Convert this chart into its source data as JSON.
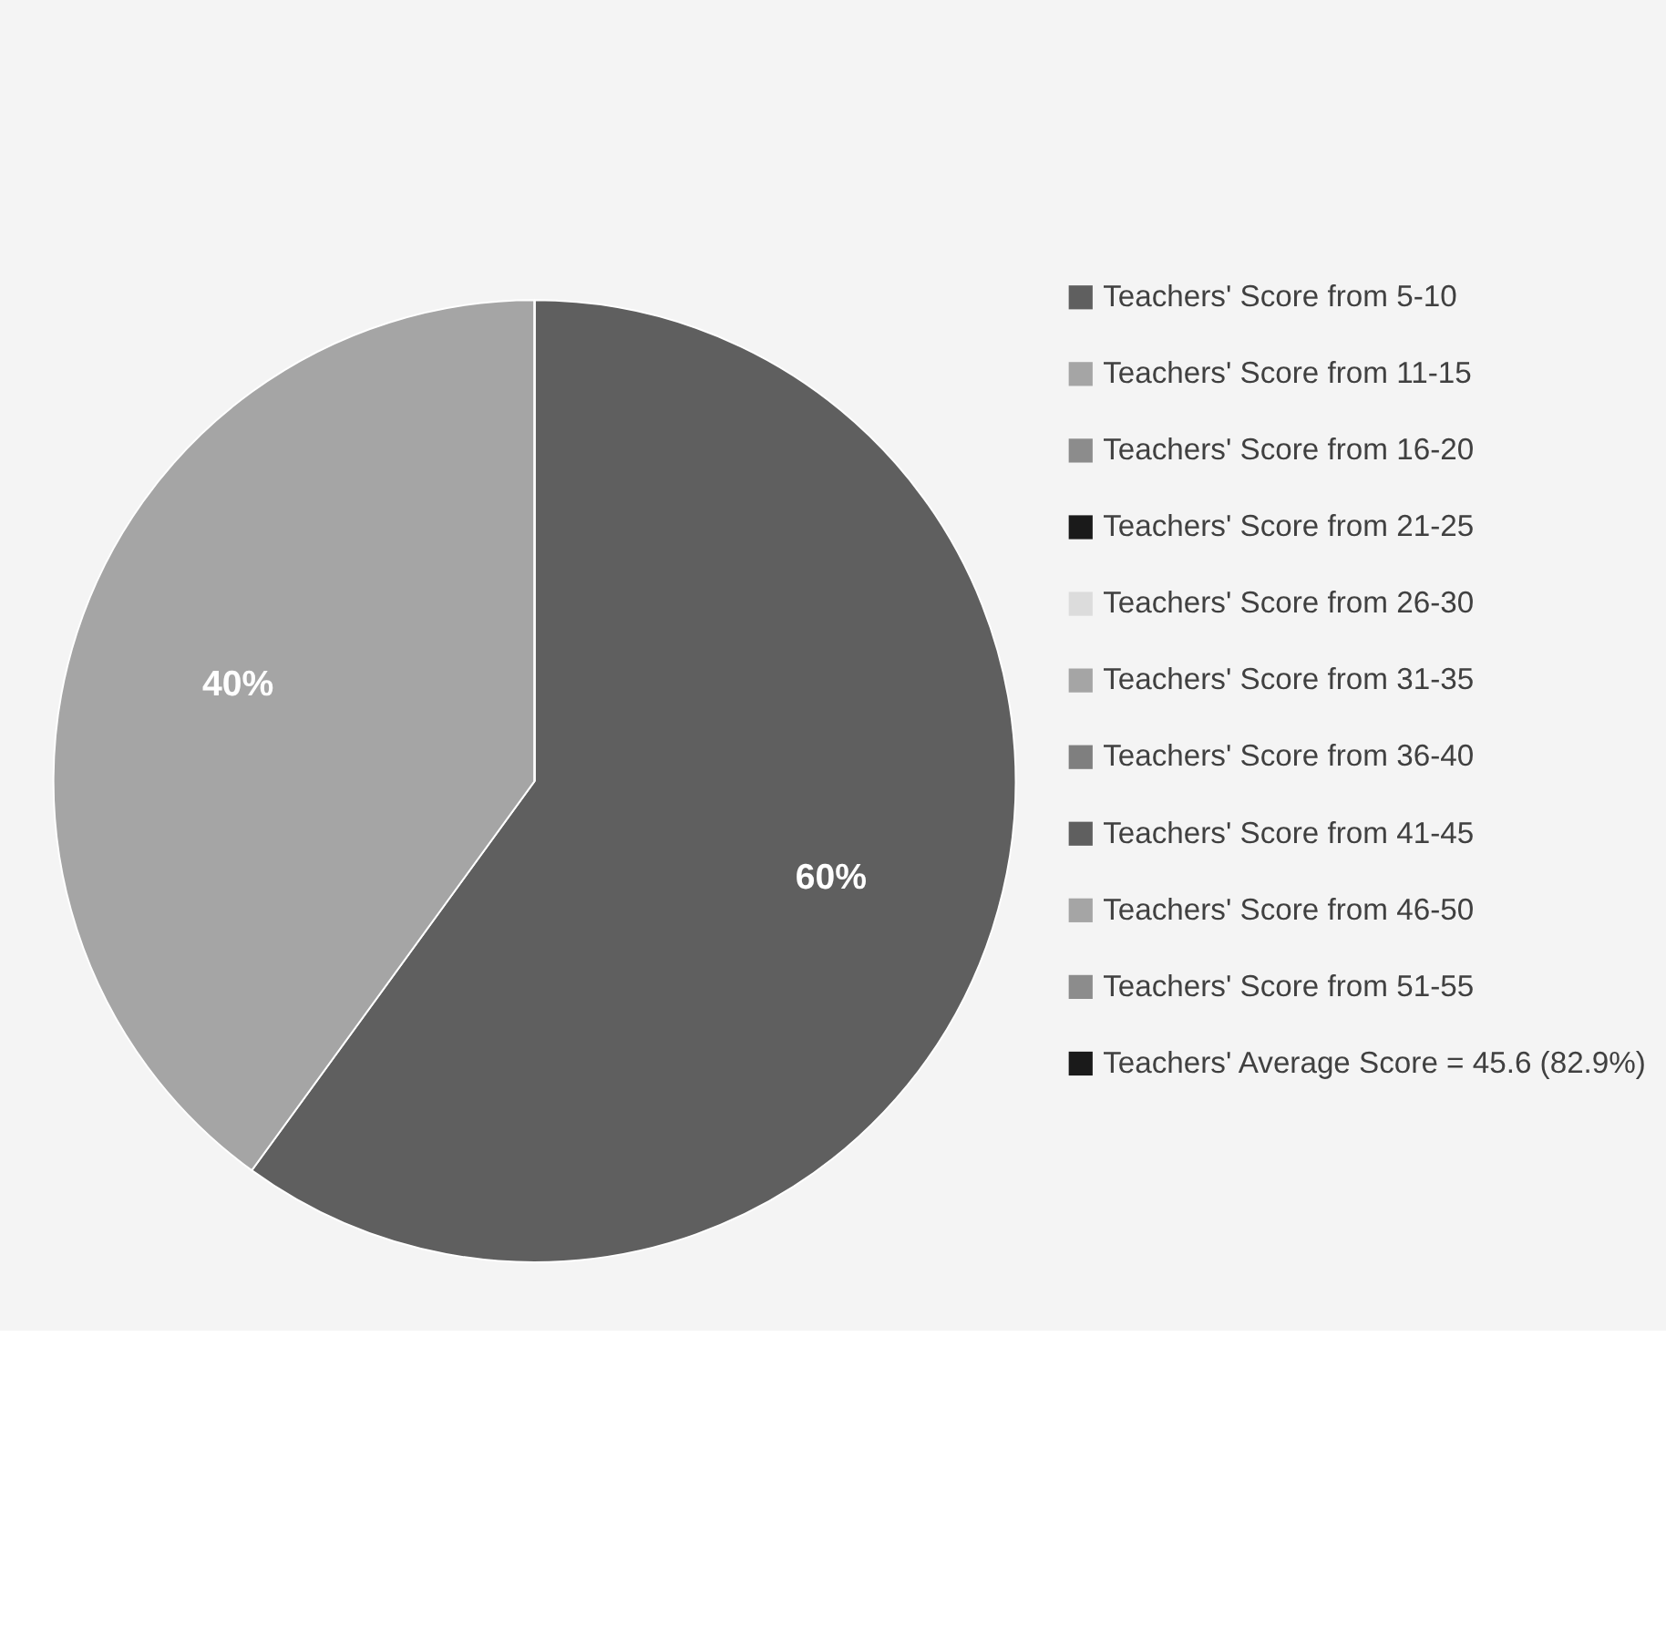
{
  "chart_data": {
    "type": "pie",
    "categories": [
      "Teachers' Score from 5-10",
      "Teachers' Score from 11-15",
      "Teachers' Score from 16-20",
      "Teachers' Score from 21-25",
      "Teachers' Score from 26-30",
      "Teachers' Score from 31-35",
      "Teachers' Score from 36-40",
      "Teachers' Score from 41-45",
      "Teachers' Score from 46-50",
      "Teachers' Score from 51-55",
      "Teachers' Average Score = 45.6 (82.9%)"
    ],
    "values": [
      0,
      0,
      0,
      0,
      0,
      0,
      0,
      60,
      40,
      0,
      0
    ],
    "value_labels": [
      null,
      null,
      null,
      null,
      null,
      null,
      null,
      "60%",
      "40%",
      null,
      null
    ],
    "colors": [
      "#5f5f5f",
      "#a5a5a5",
      "#8c8c8c",
      "#1a1a1a",
      "#dcdcdc",
      "#a5a5a5",
      "#7f7f7f",
      "#5f5f5f",
      "#a5a5a5",
      "#8c8c8c",
      "#1a1a1a"
    ],
    "legend": "right"
  }
}
